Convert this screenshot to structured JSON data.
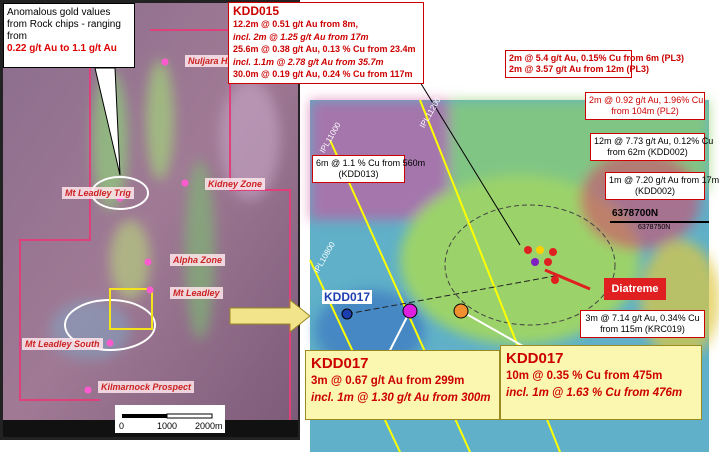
{
  "left_map": {
    "callout": {
      "text": "Anomalous gold values from Rock chips - ranging from",
      "highlight": "0.22 g/t Au to 1.1 g/t Au"
    },
    "places": [
      "Nuljara Hill",
      "Kidney Zone",
      "Mt Leadley Trig",
      "Alpha Zone",
      "Mt Leadley",
      "Mt Leadley South",
      "Kilmarnock Prospect"
    ],
    "scale": [
      "0",
      "1000",
      "2000m"
    ]
  },
  "right_map": {
    "grid_labels": [
      "IPL11000",
      "IPL11200",
      "IPL10800",
      "6378700N",
      "6378750N"
    ],
    "hole_label": "KDD017",
    "diatreme": "Diatreme",
    "kdd015": {
      "title": "KDD015",
      "lines": [
        "12.2m @ 0.51 g/t Au from 8m,",
        "incl. 2m @ 1.25 g/t Au from 17m",
        "25.6m @ 0.38 g/t Au, 0.13 % Cu from 23.4m",
        "incl. 1.1m @ 2.78 g/t Au from 35.7m",
        "30.0m @ 0.19 g/t Au, 0.24 % Cu from 117m"
      ]
    },
    "intercepts": [
      [
        "2m @ 5.4 g/t Au, 0.15% Cu from 6m (PL3)",
        "2m @ 3.57 g/t Au from 12m (PL3)"
      ],
      [
        "2m @ 0.92 g/t Au, 1.96% Cu",
        "from 104m (PL2)"
      ],
      [
        "12m @ 7.73 g/t Au, 0.12% Cu",
        "from 62m (KDD002)"
      ],
      [
        "1m @ 7.20 g/t Au from 17m",
        "(KDD002)"
      ],
      [
        "6m @ 1.1 % Cu from 560m",
        "(KDD013)"
      ],
      [
        "3m @ 7.14 g/t Au, 0.34% Cu",
        "from 115m (KRC019)"
      ]
    ],
    "bottom": [
      {
        "title": "KDD017",
        "lines": [
          "3m @ 0.67 g/t Au from 299m",
          "incl. 1m @ 1.30 g/t Au from 300m"
        ]
      },
      {
        "title": "KDD017",
        "lines": [
          "10m @ 0.35 % Cu from 475m",
          "incl. 1m @ 1.63 % Cu from 476m"
        ]
      }
    ]
  }
}
